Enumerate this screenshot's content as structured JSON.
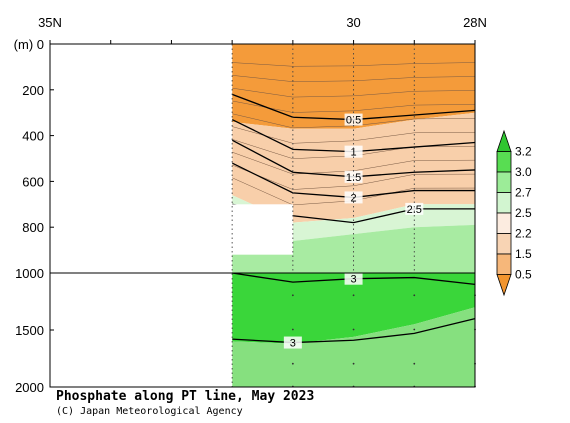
{
  "chart_data": {
    "type": "heatmap",
    "title": "Phosphate along PT line, May 2023",
    "credit": "(C) Japan Meteorological Agency",
    "yunit": "(m)",
    "xticks": [
      {
        "lat": 35,
        "label": "35N"
      },
      {
        "lat": 30,
        "label": "30"
      },
      {
        "lat": 28,
        "label": "28N"
      }
    ],
    "xlim": [
      35,
      28
    ],
    "yticks_upper": [
      0,
      200,
      400,
      600,
      800,
      1000
    ],
    "yticks_lower": [
      1500,
      2000
    ],
    "ylim": [
      0,
      2000
    ],
    "axis_break_depth": 1000,
    "station_latitudes": [
      31,
      30,
      29,
      28
    ],
    "data_start_lat": 32,
    "legend": {
      "levels": [
        "0.5",
        "1.5",
        "2.2",
        "2.5",
        "2.7",
        "3.0",
        "3.2"
      ],
      "colors": [
        "#f2952f",
        "#f6b77a",
        "#f8d4b4",
        "#fcece0",
        "#d2f5d0",
        "#9cec98",
        "#58dd52",
        "#2fc630"
      ]
    },
    "bands": [
      {
        "top": [
          0,
          0,
          0,
          0,
          0
        ],
        "bottom": [
          340,
          370,
          370,
          330,
          300
        ],
        "color": "#f49b3a"
      },
      {
        "top": [
          340,
          370,
          370,
          330,
          300
        ],
        "bottom": [
          660,
          780,
          760,
          700,
          700
        ],
        "color": "#f8cfaa"
      },
      {
        "top": [
          660,
          780,
          760,
          700,
          700
        ],
        "bottom": [
          790,
          860,
          830,
          800,
          790
        ],
        "color": "#d8f5d4"
      },
      {
        "top": [
          790,
          860,
          830,
          800,
          790
        ],
        "bottom": [
          1000,
          1000,
          1000,
          1000,
          1000
        ],
        "color": "#a8eba2"
      },
      {
        "top": [
          1000,
          1000,
          1000,
          1000,
          1000
        ],
        "bottom": [
          1600,
          1620,
          1560,
          1450,
          1300
        ],
        "color": "#3ad63a"
      },
      {
        "top": [
          1600,
          1620,
          1560,
          1450,
          1300
        ],
        "bottom": [
          2000,
          2000,
          2000,
          2000,
          2000
        ],
        "color": "#86e07f"
      }
    ],
    "contours": [
      {
        "level": "0.5",
        "labelLat": 30,
        "depths": [
          220,
          320,
          330,
          310,
          290
        ]
      },
      {
        "level": "1",
        "labelLat": 30,
        "depths": [
          330,
          460,
          470,
          450,
          430
        ]
      },
      {
        "level": "1.5",
        "labelLat": 30,
        "depths": [
          420,
          560,
          580,
          560,
          550
        ]
      },
      {
        "level": "2",
        "labelLat": 30,
        "depths": [
          520,
          650,
          670,
          640,
          640
        ]
      },
      {
        "level": "2.5",
        "labelLat": 29,
        "depths": [
          700,
          750,
          780,
          720,
          720
        ]
      },
      {
        "level": "3",
        "labelLat": 30,
        "depths": [
          1000,
          1080,
          1050,
          1040,
          1100
        ]
      },
      {
        "level": "3",
        "labelLat": 31,
        "depths": [
          1580,
          1610,
          1590,
          1530,
          1400
        ]
      }
    ]
  }
}
